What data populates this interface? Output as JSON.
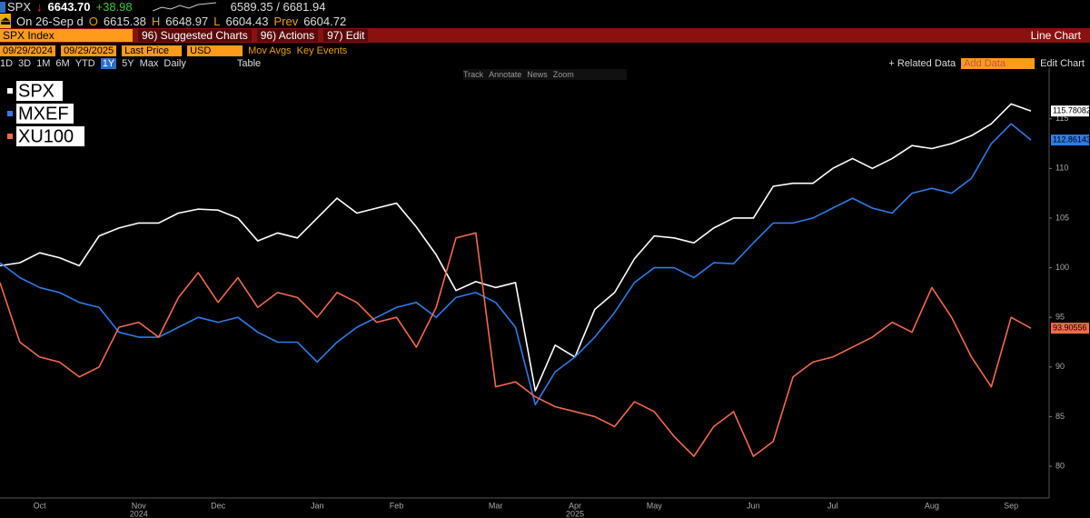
{
  "ui": {
    "quote": {
      "ticker": "SPX",
      "price": "6643.70",
      "change": "+38.98",
      "range": "6589.35 / 6681.94"
    },
    "session": {
      "date": "On 26-Sep d",
      "o_label": "O",
      "open": "6615.38",
      "h_label": "H",
      "high": "6648.97",
      "l_label": "L",
      "low": "6604.43",
      "prev_label": "Prev",
      "prev": "6604.72"
    },
    "menu": {
      "security": "SPX Index",
      "items": [
        "96) Suggested Charts",
        "96) Actions",
        "97) Edit"
      ],
      "chart_type": "Line Chart"
    },
    "controls": {
      "start": "09/29/2024",
      "end": "09/29/2025",
      "field": "Last Price",
      "currency": "USD",
      "mov_avgs": "Mov Avgs",
      "key_events": "Key Events"
    },
    "periods": [
      "1D",
      "3D",
      "1M",
      "6M",
      "YTD",
      "1Y",
      "5Y",
      "Max"
    ],
    "frequency": "Daily",
    "table": "Table",
    "related": "+ Related Data",
    "add_data": "Add Data",
    "edit_chart": "Edit Chart",
    "tools": [
      "Track",
      "Annotate",
      "News",
      "Zoom"
    ]
  },
  "chart_data": {
    "type": "line",
    "categories": [
      null,
      null,
      "Oct",
      null,
      null,
      null,
      null,
      "Nov",
      null,
      null,
      null,
      "Dec",
      null,
      null,
      null,
      null,
      "Jan",
      null,
      null,
      null,
      "Feb",
      null,
      null,
      null,
      null,
      "Mar",
      null,
      null,
      null,
      "Apr",
      null,
      null,
      null,
      "May",
      null,
      null,
      null,
      null,
      "Jun",
      null,
      null,
      null,
      "Jul",
      null,
      null,
      null,
      null,
      "Aug",
      null,
      null,
      null,
      "Sep",
      null
    ],
    "years": [
      null,
      null,
      null,
      null,
      null,
      null,
      null,
      "2024",
      null,
      null,
      null,
      null,
      null,
      null,
      null,
      null,
      null,
      null,
      null,
      null,
      null,
      null,
      null,
      null,
      null,
      null,
      null,
      null,
      null,
      "2025",
      null,
      null,
      null,
      null,
      null,
      null,
      null,
      null,
      null,
      null,
      null,
      null,
      null,
      null,
      null,
      null,
      null,
      null,
      null,
      null,
      null,
      null,
      null
    ],
    "series": [
      {
        "name": "SPX",
        "color": "#ffffff",
        "values": [
          100.2,
          100.5,
          101.5,
          101,
          100.2,
          103.2,
          104,
          104.5,
          104.5,
          105.5,
          105.9,
          105.8,
          105,
          102.7,
          103.5,
          103,
          105,
          107,
          105.5,
          106,
          106.5,
          104.1,
          101.3,
          97.7,
          98.6,
          98,
          98.5,
          87.6,
          92.2,
          91,
          95.8,
          97.5,
          100.9,
          103.2,
          103,
          102.5,
          104,
          105,
          105,
          108.2,
          108.5,
          108.5,
          110,
          111,
          110,
          111,
          112.3,
          112,
          112.5,
          113.3,
          114.5,
          116.5,
          115.78082
        ]
      },
      {
        "name": "MXEF",
        "color": "#2f7be8",
        "values": [
          100.5,
          99,
          98,
          97.5,
          96.5,
          96,
          93.5,
          93,
          93,
          94,
          95,
          94.5,
          95,
          93.5,
          92.5,
          92.5,
          90.5,
          92.5,
          94,
          95,
          96,
          96.5,
          95,
          97,
          97.5,
          96.5,
          94,
          86.2,
          89.5,
          91,
          93,
          95.5,
          98.5,
          100,
          100,
          99,
          100.5,
          100.4,
          102.5,
          104.5,
          104.5,
          105,
          106,
          107,
          106,
          105.5,
          107.5,
          108,
          107.5,
          109,
          112.5,
          114.5,
          112.86143
        ]
      },
      {
        "name": "XU100",
        "color": "#f26a4b",
        "values": [
          98.5,
          92.5,
          91,
          90.5,
          89,
          90,
          94,
          94.5,
          93,
          97,
          99.5,
          96.5,
          99,
          96,
          97.5,
          97,
          95,
          97.5,
          96.5,
          94.5,
          95,
          92,
          96,
          103,
          103.5,
          88,
          88.5,
          87,
          86,
          85.5,
          85,
          84,
          86.5,
          85.5,
          83,
          81,
          84,
          85.5,
          81,
          82.5,
          89,
          90.5,
          91,
          92,
          93,
          94.5,
          93.5,
          98,
          95,
          91,
          88,
          95,
          93.90556
        ]
      }
    ],
    "ylim": [
      76.8,
      120.1
    ],
    "yticks": [
      80,
      85,
      90,
      95,
      100,
      105,
      110,
      115
    ]
  }
}
